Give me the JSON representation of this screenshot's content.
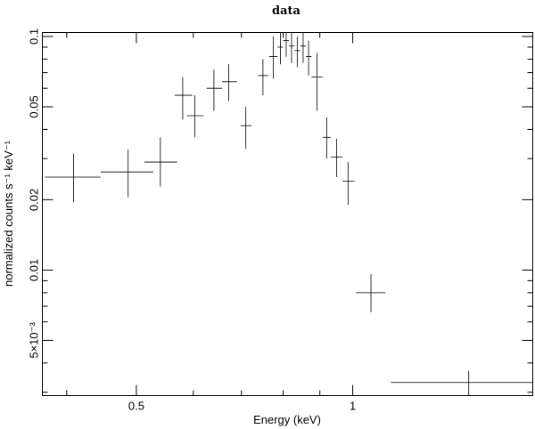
{
  "chart_data": {
    "type": "scatter",
    "title": "data",
    "xlabel": "Energy (keV)",
    "ylabel": "normalized counts s⁻¹ keV⁻¹",
    "x_scale": "log",
    "y_scale": "log",
    "xlim": [
      0.37,
      1.78
    ],
    "ylim": [
      0.0029,
      0.104
    ],
    "x_ticks": [
      {
        "value": 0.5,
        "label": "0.5"
      },
      {
        "value": 1,
        "label": "1"
      }
    ],
    "y_ticks": [
      {
        "value": 0.005,
        "label": "5×10⁻³"
      },
      {
        "value": 0.01,
        "label": "0.01"
      },
      {
        "value": 0.02,
        "label": "0.02"
      },
      {
        "value": 0.05,
        "label": "0.05"
      },
      {
        "value": 0.1,
        "label": "0.1"
      }
    ],
    "grid": false,
    "series": [
      {
        "points": [
          {
            "x": 0.409,
            "xlo": 0.373,
            "xhi": 0.446,
            "y": 0.025,
            "ylo": 0.0195,
            "yhi": 0.0315
          },
          {
            "x": 0.487,
            "xlo": 0.446,
            "xhi": 0.528,
            "y": 0.0263,
            "ylo": 0.0205,
            "yhi": 0.0328
          },
          {
            "x": 0.54,
            "xlo": 0.513,
            "xhi": 0.57,
            "y": 0.029,
            "ylo": 0.0228,
            "yhi": 0.037
          },
          {
            "x": 0.58,
            "xlo": 0.565,
            "xhi": 0.598,
            "y": 0.056,
            "ylo": 0.044,
            "yhi": 0.067
          },
          {
            "x": 0.603,
            "xlo": 0.588,
            "xhi": 0.62,
            "y": 0.0458,
            "ylo": 0.037,
            "yhi": 0.056
          },
          {
            "x": 0.641,
            "xlo": 0.626,
            "xhi": 0.658,
            "y": 0.06,
            "ylo": 0.048,
            "yhi": 0.072
          },
          {
            "x": 0.672,
            "xlo": 0.658,
            "xhi": 0.69,
            "y": 0.064,
            "ylo": 0.053,
            "yhi": 0.076
          },
          {
            "x": 0.71,
            "xlo": 0.698,
            "xhi": 0.723,
            "y": 0.0415,
            "ylo": 0.033,
            "yhi": 0.05
          },
          {
            "x": 0.75,
            "xlo": 0.738,
            "xhi": 0.763,
            "y": 0.068,
            "ylo": 0.056,
            "yhi": 0.08
          },
          {
            "x": 0.775,
            "xlo": 0.765,
            "xhi": 0.786,
            "y": 0.082,
            "ylo": 0.066,
            "yhi": 0.1
          },
          {
            "x": 0.793,
            "xlo": 0.786,
            "xhi": 0.8,
            "y": 0.09,
            "ylo": 0.076,
            "yhi": 0.104
          },
          {
            "x": 0.808,
            "xlo": 0.8,
            "xhi": 0.815,
            "y": 0.096,
            "ylo": 0.082,
            "yhi": 0.104
          },
          {
            "x": 0.822,
            "xlo": 0.815,
            "xhi": 0.83,
            "y": 0.091,
            "ylo": 0.077,
            "yhi": 0.104
          },
          {
            "x": 0.837,
            "xlo": 0.83,
            "xhi": 0.845,
            "y": 0.087,
            "ylo": 0.074,
            "yhi": 0.1
          },
          {
            "x": 0.853,
            "xlo": 0.845,
            "xhi": 0.861,
            "y": 0.091,
            "ylo": 0.077,
            "yhi": 0.104
          },
          {
            "x": 0.868,
            "xlo": 0.861,
            "xhi": 0.876,
            "y": 0.082,
            "ylo": 0.068,
            "yhi": 0.096
          },
          {
            "x": 0.892,
            "xlo": 0.876,
            "xhi": 0.908,
            "y": 0.067,
            "ylo": 0.048,
            "yhi": 0.085
          },
          {
            "x": 0.92,
            "xlo": 0.908,
            "xhi": 0.932,
            "y": 0.037,
            "ylo": 0.03,
            "yhi": 0.045
          },
          {
            "x": 0.95,
            "xlo": 0.932,
            "xhi": 0.968,
            "y": 0.0305,
            "ylo": 0.025,
            "yhi": 0.0365
          },
          {
            "x": 0.985,
            "xlo": 0.968,
            "xhi": 1.005,
            "y": 0.024,
            "ylo": 0.019,
            "yhi": 0.029
          },
          {
            "x": 1.06,
            "xlo": 1.01,
            "xhi": 1.11,
            "y": 0.008,
            "ylo": 0.0066,
            "yhi": 0.0096
          },
          {
            "x": 1.45,
            "xlo": 1.13,
            "xhi": 1.78,
            "y": 0.0033,
            "ylo": 0.0029,
            "yhi": 0.0037
          }
        ]
      }
    ]
  }
}
